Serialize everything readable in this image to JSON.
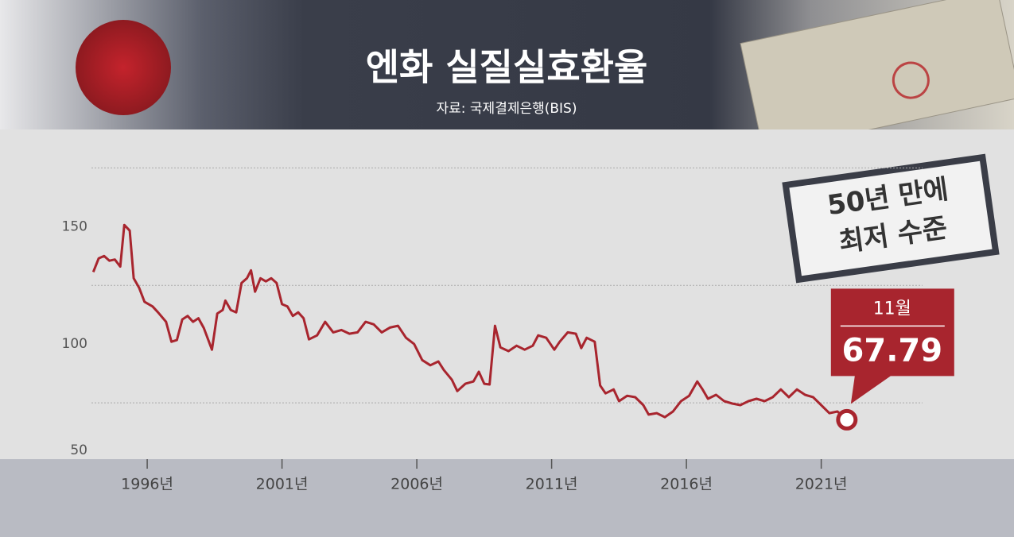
{
  "chart_data": {
    "type": "line",
    "title": "엔화 실질실효환율",
    "subtitle": "자료: 국제결제은행(BIS)",
    "badge": [
      "50년 만에",
      "최저 수준"
    ],
    "callout_label": "11월",
    "x": [
      1994.0,
      1994.2,
      1994.4,
      1994.6,
      1994.8,
      1995.0,
      1995.15,
      1995.35,
      1995.5,
      1995.7,
      1995.9,
      1996.2,
      1996.4,
      1996.7,
      1996.9,
      1997.1,
      1997.3,
      1997.5,
      1997.7,
      1997.9,
      1998.1,
      1998.4,
      1998.6,
      1998.8,
      1998.9,
      1999.1,
      1999.3,
      1999.5,
      1999.7,
      1999.85,
      2000.0,
      2000.2,
      2000.4,
      2000.6,
      2000.8,
      2001.0,
      2001.2,
      2001.4,
      2001.6,
      2001.8,
      2002.0,
      2002.3,
      2002.6,
      2002.9,
      2003.2,
      2003.5,
      2003.8,
      2004.1,
      2004.4,
      2004.7,
      2005.0,
      2005.3,
      2005.6,
      2005.9,
      2006.2,
      2006.5,
      2006.8,
      2007.0,
      2007.3,
      2007.5,
      2007.8,
      2008.1,
      2008.3,
      2008.5,
      2008.7,
      2008.9,
      2009.1,
      2009.4,
      2009.7,
      2010.0,
      2010.3,
      2010.5,
      2010.8,
      2011.1,
      2011.3,
      2011.6,
      2011.9,
      2012.1,
      2012.3,
      2012.6,
      2012.8,
      2013.0,
      2013.3,
      2013.5,
      2013.8,
      2014.1,
      2014.4,
      2014.6,
      2014.9,
      2015.2,
      2015.5,
      2015.8,
      2016.1,
      2016.4,
      2016.6,
      2016.8,
      2017.1,
      2017.4,
      2017.7,
      2018.0,
      2018.3,
      2018.6,
      2018.9,
      2019.2,
      2019.5,
      2019.8,
      2020.1,
      2020.4,
      2020.7,
      2021.0,
      2021.3,
      2021.6,
      2021.95
    ],
    "series": [
      {
        "color": "#a8252e",
        "values": [
          130.7,
          136.5,
          137.5,
          135.5,
          136,
          133,
          150.7,
          148.3,
          128,
          124,
          118,
          116,
          113.5,
          109.5,
          101,
          101.7,
          110.5,
          112,
          109.5,
          111,
          106.8,
          97.6,
          113,
          114.5,
          118.5,
          114.5,
          113.5,
          126,
          128,
          131.4,
          122.3,
          128,
          126.7,
          128,
          126,
          117,
          116,
          112,
          113.5,
          111,
          102,
          103.7,
          109.5,
          105,
          106,
          104.4,
          105,
          109.5,
          108.4,
          105,
          107,
          107.8,
          102.7,
          100,
          93.2,
          91,
          92.6,
          89,
          84.8,
          80,
          83.1,
          84.1,
          88.2,
          83.1,
          82.8,
          107.8,
          98.6,
          97,
          99.3,
          97.6,
          99.3,
          103.7,
          102.7,
          97.6,
          101,
          105,
          104.4,
          98.3,
          102.7,
          101,
          82.4,
          79,
          80.7,
          75.7,
          78,
          77.4,
          74,
          70,
          70.6,
          68.9,
          71.3,
          75.7,
          78,
          84.1,
          80.7,
          76.7,
          78.4,
          75.7,
          74.7,
          74,
          75.7,
          76.7,
          75.7,
          77.4,
          80.7,
          77.4,
          80.7,
          78.4,
          77.4,
          74,
          70.6,
          71.3,
          67.79
        ]
      }
    ],
    "xlim": [
      1990.54,
      2028.15
    ],
    "xticks": [
      {
        "value": 1996,
        "label": "1996년"
      },
      {
        "value": 2001,
        "label": "2001년"
      },
      {
        "value": 2006,
        "label": "2006년"
      },
      {
        "value": 2011,
        "label": "2011년"
      },
      {
        "value": 2016,
        "label": "2016년"
      },
      {
        "value": 2021,
        "label": "2021년"
      }
    ],
    "ylim": [
      50,
      190
    ],
    "yticks": [
      50,
      100,
      150
    ],
    "yminor": [
      75,
      125,
      175
    ],
    "grid": true
  }
}
